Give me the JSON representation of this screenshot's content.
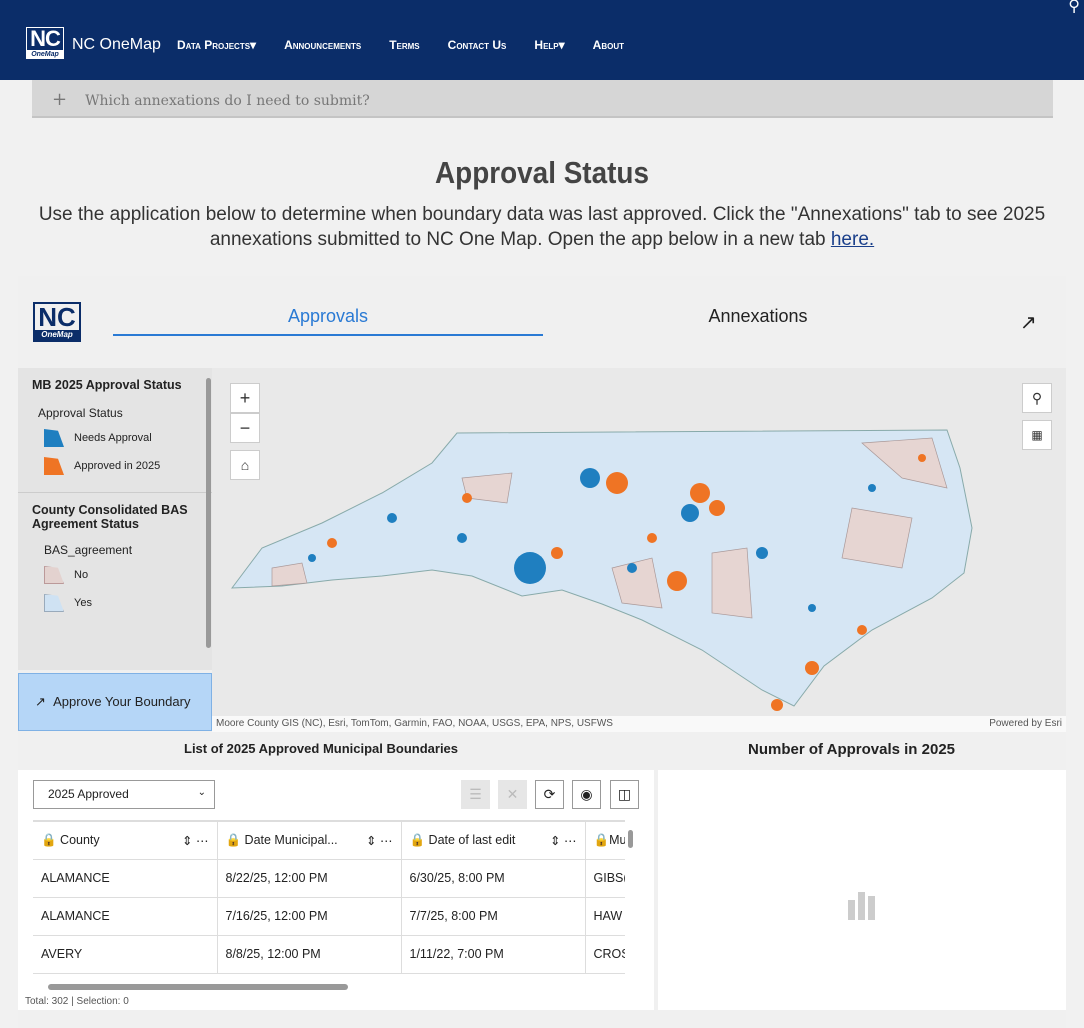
{
  "header": {
    "logo": "NC",
    "logo_sub": "OneMap",
    "brand": "NC OneMap",
    "nav": [
      "Data Projects▾",
      "Announcements",
      "Terms",
      "Contact Us",
      "Help▾",
      "About"
    ]
  },
  "accordion": {
    "icon": "+",
    "label": "Which annexations do I need to submit?"
  },
  "page": {
    "title": "Approval Status",
    "subtitle": "Use the application below to determine when boundary data was last approved. Click the \"Annexations\" tab to see 2025 annexations submitted to NC One Map. Open the app below in a new tab ",
    "link": "here."
  },
  "app": {
    "logo": "NC",
    "logo_sub": "OneMap",
    "tabs": [
      "Approvals",
      "Annexations"
    ],
    "legend": {
      "layer1": "MB 2025 Approval Status",
      "field1": "Approval Status",
      "items1": [
        {
          "label": "Needs Approval",
          "color": "#1f7fc0"
        },
        {
          "label": "Approved in 2025",
          "color": "#ef7424"
        }
      ],
      "layer2": "County Consolidated BAS Agreement Status",
      "field2": "BAS_agreement",
      "items2": [
        {
          "label": "No",
          "color": "#e3d2cf"
        },
        {
          "label": "Yes",
          "color": "#cfe2f3"
        }
      ]
    },
    "approve_button": "Approve Your Boundary",
    "map": {
      "zoom_in": "+",
      "zoom_out": "−",
      "attribution": "Moore County GIS (NC), Esri, TomTom, Garmin, FAO, NOAA, USGS, EPA, NPS, USFWS",
      "powered": "Powered by Esri"
    },
    "table_title": "List of 2025 Approved Municipal Boundaries",
    "chart_title": "Number of Approvals in 2025",
    "table": {
      "view": "2025 Approved",
      "columns": [
        "County",
        "Date Municipal...",
        "Date of last edit",
        "Mu"
      ],
      "rows": [
        [
          "ALAMANCE",
          "8/22/25, 12:00 PM",
          "6/30/25, 8:00 PM",
          "GIBS("
        ],
        [
          "ALAMANCE",
          "7/16/25, 12:00 PM",
          "7/7/25, 8:00 PM",
          "HAW"
        ],
        [
          "AVERY",
          "8/8/25, 12:00 PM",
          "1/11/22, 7:00 PM",
          "CROS"
        ]
      ],
      "footer": "Total: 302 | Selection: 0"
    }
  }
}
